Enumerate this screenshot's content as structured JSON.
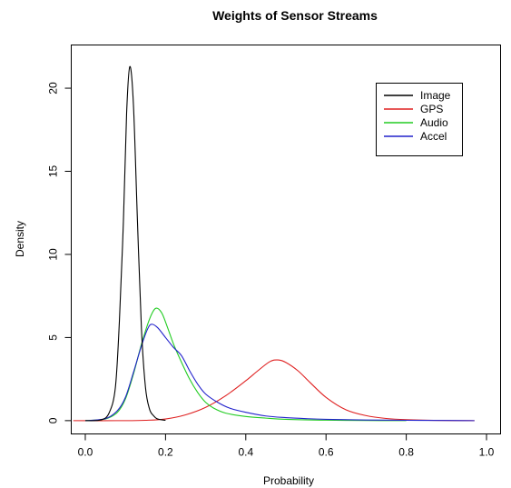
{
  "chart_data": {
    "type": "line",
    "title": "Weights of Sensor Streams",
    "xlabel": "Probability",
    "ylabel": "Density",
    "xlim": [
      -0.035,
      1.035
    ],
    "ylim": [
      -0.8,
      22.6
    ],
    "xticks": [
      0.0,
      0.2,
      0.4,
      0.6,
      0.8,
      1.0
    ],
    "xtick_labels": [
      "0.0",
      "0.2",
      "0.4",
      "0.6",
      "0.8",
      "1.0"
    ],
    "yticks": [
      0,
      5,
      10,
      15,
      20
    ],
    "ytick_labels": [
      "0",
      "5",
      "10",
      "15",
      "20"
    ],
    "grid": false,
    "legend_position": "top-right",
    "series": [
      {
        "name": "Image",
        "color": "#000000",
        "points": [
          [
            0.0,
            0.0
          ],
          [
            0.04,
            0.05
          ],
          [
            0.06,
            0.5
          ],
          [
            0.075,
            2.0
          ],
          [
            0.085,
            6.0
          ],
          [
            0.095,
            12.0
          ],
          [
            0.103,
            18.5
          ],
          [
            0.111,
            21.3
          ],
          [
            0.12,
            19.0
          ],
          [
            0.13,
            12.0
          ],
          [
            0.14,
            5.5
          ],
          [
            0.15,
            2.0
          ],
          [
            0.16,
            0.7
          ],
          [
            0.17,
            0.3
          ],
          [
            0.18,
            0.1
          ],
          [
            0.2,
            0.02
          ]
        ]
      },
      {
        "name": "GPS",
        "color": "#df2020",
        "points": [
          [
            -0.03,
            0.0
          ],
          [
            0.1,
            0.0
          ],
          [
            0.15,
            0.02
          ],
          [
            0.2,
            0.1
          ],
          [
            0.25,
            0.35
          ],
          [
            0.3,
            0.8
          ],
          [
            0.35,
            1.5
          ],
          [
            0.4,
            2.4
          ],
          [
            0.43,
            3.0
          ],
          [
            0.46,
            3.55
          ],
          [
            0.48,
            3.65
          ],
          [
            0.5,
            3.5
          ],
          [
            0.53,
            3.0
          ],
          [
            0.56,
            2.3
          ],
          [
            0.6,
            1.4
          ],
          [
            0.65,
            0.65
          ],
          [
            0.7,
            0.3
          ],
          [
            0.75,
            0.13
          ],
          [
            0.8,
            0.06
          ],
          [
            0.9,
            0.01
          ],
          [
            0.97,
            0.0
          ]
        ]
      },
      {
        "name": "Audio",
        "color": "#22cc22",
        "points": [
          [
            0.0,
            0.0
          ],
          [
            0.05,
            0.1
          ],
          [
            0.08,
            0.5
          ],
          [
            0.1,
            1.3
          ],
          [
            0.12,
            2.8
          ],
          [
            0.14,
            4.6
          ],
          [
            0.16,
            6.1
          ],
          [
            0.175,
            6.75
          ],
          [
            0.19,
            6.5
          ],
          [
            0.205,
            5.6
          ],
          [
            0.22,
            4.6
          ],
          [
            0.24,
            3.5
          ],
          [
            0.26,
            2.5
          ],
          [
            0.28,
            1.7
          ],
          [
            0.3,
            1.1
          ],
          [
            0.32,
            0.75
          ],
          [
            0.35,
            0.45
          ],
          [
            0.4,
            0.25
          ],
          [
            0.45,
            0.15
          ],
          [
            0.5,
            0.08
          ],
          [
            0.6,
            0.03
          ],
          [
            0.7,
            0.01
          ],
          [
            0.8,
            0.0
          ]
        ]
      },
      {
        "name": "Accel",
        "color": "#2222cc",
        "points": [
          [
            0.0,
            0.0
          ],
          [
            0.05,
            0.12
          ],
          [
            0.08,
            0.6
          ],
          [
            0.1,
            1.4
          ],
          [
            0.12,
            2.9
          ],
          [
            0.14,
            4.5
          ],
          [
            0.155,
            5.5
          ],
          [
            0.165,
            5.8
          ],
          [
            0.18,
            5.6
          ],
          [
            0.2,
            5.0
          ],
          [
            0.22,
            4.4
          ],
          [
            0.24,
            3.9
          ],
          [
            0.26,
            3.0
          ],
          [
            0.28,
            2.2
          ],
          [
            0.3,
            1.6
          ],
          [
            0.33,
            1.1
          ],
          [
            0.36,
            0.75
          ],
          [
            0.4,
            0.5
          ],
          [
            0.45,
            0.28
          ],
          [
            0.5,
            0.18
          ],
          [
            0.55,
            0.12
          ],
          [
            0.6,
            0.08
          ],
          [
            0.7,
            0.04
          ],
          [
            0.8,
            0.02
          ],
          [
            0.9,
            0.01
          ],
          [
            0.97,
            0.0
          ]
        ]
      }
    ]
  }
}
